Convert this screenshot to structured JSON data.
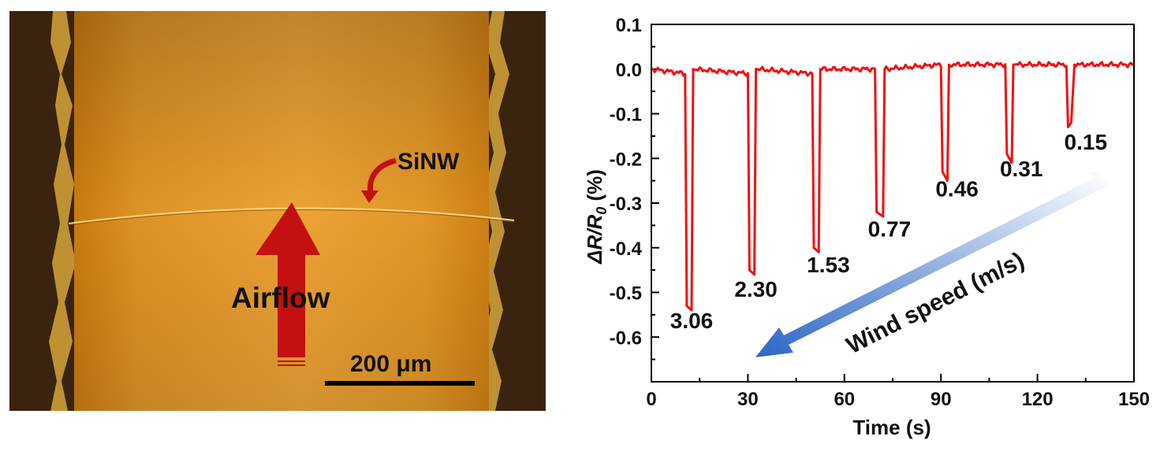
{
  "micrograph": {
    "nanowire_label": "SiNW",
    "airflow_label": "Airflow",
    "scale_bar_label": "200 μm",
    "colors": {
      "tube": "#e39a22",
      "arrow": "#c41010",
      "background": "#2a180a"
    }
  },
  "chart_data": {
    "type": "line",
    "xlabel": "Time (s)",
    "ylabel_main": "ΔR/R",
    "ylabel_sub": "0",
    "ylabel_unit": " (%)",
    "xlim": [
      0,
      150
    ],
    "ylim": [
      -0.7,
      0.1
    ],
    "xticks": [
      0,
      30,
      60,
      90,
      120,
      150
    ],
    "xtick_labels": [
      "0",
      "30",
      "60",
      "90",
      "120",
      "150"
    ],
    "yticks": [
      0.1,
      0.0,
      -0.1,
      -0.2,
      -0.3,
      -0.4,
      -0.5,
      -0.6
    ],
    "ytick_labels": [
      "0.1",
      "0.0",
      "-0.1",
      "-0.2",
      "-0.3",
      "-0.4",
      "-0.5",
      "-0.6"
    ],
    "line_color": "#ee1111",
    "arrow_label": "Wind speed (m/s)",
    "series": [
      {
        "values": [
          [
            0,
            0.0
          ],
          [
            10.5,
            -0.01
          ],
          [
            11,
            -0.53
          ],
          [
            12.5,
            -0.54
          ],
          [
            13,
            0.0
          ],
          [
            30,
            -0.01
          ],
          [
            30.5,
            -0.45
          ],
          [
            32,
            -0.46
          ],
          [
            32.5,
            0.0
          ],
          [
            50,
            -0.01
          ],
          [
            50.5,
            -0.4
          ],
          [
            52,
            -0.41
          ],
          [
            52.5,
            0.0
          ],
          [
            69.5,
            0.0
          ],
          [
            70,
            -0.32
          ],
          [
            72,
            -0.33
          ],
          [
            72.5,
            0.0
          ],
          [
            90,
            0.01
          ],
          [
            90.5,
            -0.23
          ],
          [
            92,
            -0.25
          ],
          [
            92.5,
            0.01
          ],
          [
            110,
            0.01
          ],
          [
            110.5,
            -0.19
          ],
          [
            112,
            -0.21
          ],
          [
            112.5,
            0.01
          ],
          [
            129,
            0.01
          ],
          [
            129.5,
            -0.13
          ],
          [
            130.5,
            -0.12
          ],
          [
            131.5,
            0.01
          ],
          [
            150,
            0.01
          ]
        ]
      }
    ],
    "annotations": [
      {
        "text": "3.06",
        "x": 12.5,
        "y": -0.58
      },
      {
        "text": "2.30",
        "x": 32.5,
        "y": -0.51
      },
      {
        "text": "1.53",
        "x": 55,
        "y": -0.455
      },
      {
        "text": "0.77",
        "x": 74,
        "y": -0.375
      },
      {
        "text": "0.46",
        "x": 95,
        "y": -0.285
      },
      {
        "text": "0.31",
        "x": 115,
        "y": -0.24
      },
      {
        "text": "0.15",
        "x": 135,
        "y": -0.18
      }
    ]
  }
}
